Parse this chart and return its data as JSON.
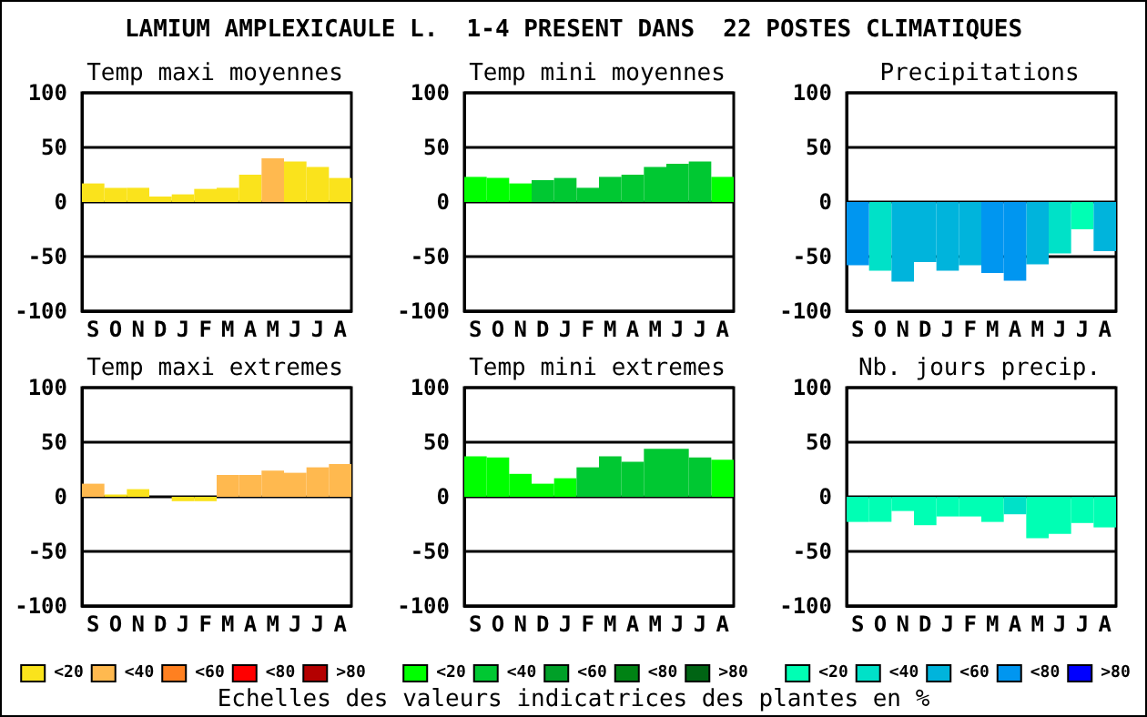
{
  "chart_data": [
    {
      "type": "bar",
      "title": "Temp maxi moyennes",
      "annotations": [
        "LAMIUM AMPLEXICAULE L.  1-4 PRESENT DANS  22 POSTES CLIMATIQUES"
      ],
      "categories": [
        "S",
        "O",
        "N",
        "D",
        "J",
        "F",
        "M",
        "A",
        "M",
        "J",
        "J",
        "A"
      ],
      "ylim": [
        -100,
        100
      ],
      "yticks": [
        -100,
        -50,
        0,
        50,
        100
      ],
      "grid": "y",
      "series": [
        {
          "color": "#fae31c",
          "values": [
            17,
            13,
            13,
            5,
            7,
            12,
            13,
            25,
            null,
            37,
            32,
            22
          ]
        },
        {
          "color": "#ffb94f",
          "values": [
            null,
            null,
            null,
            null,
            null,
            null,
            null,
            null,
            40,
            null,
            null,
            null
          ]
        }
      ]
    },
    {
      "type": "bar",
      "title": "Temp mini moyennes",
      "categories": [
        "S",
        "O",
        "N",
        "D",
        "J",
        "F",
        "M",
        "A",
        "M",
        "J",
        "J",
        "A"
      ],
      "ylim": [
        -100,
        100
      ],
      "yticks": [
        -100,
        -50,
        0,
        50,
        100
      ],
      "grid": "y",
      "series": [
        {
          "color": "#00ff00",
          "values": [
            23,
            22,
            17,
            null,
            null,
            null,
            null,
            null,
            null,
            null,
            null,
            23
          ]
        },
        {
          "color": "#00c832",
          "values": [
            null,
            null,
            null,
            20,
            22,
            13,
            23,
            25,
            32,
            35,
            37,
            null
          ]
        }
      ]
    },
    {
      "type": "bar",
      "title": "Precipitations",
      "categories": [
        "S",
        "O",
        "N",
        "D",
        "J",
        "F",
        "M",
        "A",
        "M",
        "J",
        "J",
        "A"
      ],
      "ylim": [
        -100,
        100
      ],
      "yticks": [
        -100,
        -50,
        0,
        50,
        100
      ],
      "grid": "y",
      "series": [
        {
          "color": "#00ffb4",
          "values": [
            null,
            null,
            null,
            null,
            null,
            null,
            null,
            null,
            null,
            null,
            -25,
            null
          ]
        },
        {
          "color": "#00e1c8",
          "values": [
            null,
            -63,
            null,
            null,
            null,
            null,
            null,
            null,
            null,
            -47,
            null,
            null
          ]
        },
        {
          "color": "#00b4dc",
          "values": [
            null,
            null,
            -73,
            -55,
            -63,
            -58,
            null,
            null,
            -57,
            null,
            null,
            -45
          ]
        },
        {
          "color": "#0096f0",
          "values": [
            -58,
            null,
            null,
            null,
            null,
            null,
            -65,
            -72,
            null,
            null,
            null,
            null
          ]
        }
      ]
    },
    {
      "type": "bar",
      "title": "Temp maxi extremes",
      "categories": [
        "S",
        "O",
        "N",
        "D",
        "J",
        "F",
        "M",
        "A",
        "M",
        "J",
        "J",
        "A"
      ],
      "ylim": [
        -100,
        100
      ],
      "yticks": [
        -100,
        -50,
        0,
        50,
        100
      ],
      "grid": "y",
      "legend": "bottom",
      "series": [
        {
          "name": "<20",
          "color": "#fae31c",
          "values": [
            null,
            2,
            7,
            null,
            -4,
            -4,
            null,
            null,
            null,
            null,
            null,
            null
          ]
        },
        {
          "name": "<40",
          "color": "#ffb94f",
          "values": [
            12,
            null,
            null,
            null,
            null,
            null,
            20,
            20,
            24,
            22,
            27,
            30
          ]
        },
        {
          "name": "<60",
          "color": "#ff8020",
          "values": [
            null,
            null,
            null,
            null,
            null,
            null,
            null,
            null,
            null,
            null,
            null,
            null
          ]
        },
        {
          "name": "<80",
          "color": "#ff0000",
          "values": [
            null,
            null,
            null,
            null,
            null,
            null,
            null,
            null,
            null,
            null,
            null,
            null
          ]
        },
        {
          "name": ">80",
          "color": "#b40000",
          "values": [
            null,
            null,
            null,
            null,
            null,
            null,
            null,
            null,
            null,
            null,
            null,
            null
          ]
        }
      ]
    },
    {
      "type": "bar",
      "title": "Temp mini extremes",
      "annotations": [
        "Echelles des valeurs indicatrices des plantes en %"
      ],
      "categories": [
        "S",
        "O",
        "N",
        "D",
        "J",
        "F",
        "M",
        "A",
        "M",
        "J",
        "J",
        "A"
      ],
      "ylim": [
        -100,
        100
      ],
      "yticks": [
        -100,
        -50,
        0,
        50,
        100
      ],
      "grid": "y",
      "legend": "bottom",
      "series": [
        {
          "name": "<20",
          "color": "#00ff00",
          "values": [
            37,
            36,
            21,
            12,
            17,
            null,
            null,
            null,
            null,
            null,
            null,
            34
          ]
        },
        {
          "name": "<40",
          "color": "#00c832",
          "values": [
            null,
            null,
            null,
            null,
            null,
            27,
            37,
            32,
            44,
            44,
            36,
            null
          ]
        },
        {
          "name": "<60",
          "color": "#00a028",
          "values": [
            null,
            null,
            null,
            null,
            null,
            null,
            null,
            null,
            null,
            null,
            null,
            null
          ]
        },
        {
          "name": "<80",
          "color": "#008214",
          "values": [
            null,
            null,
            null,
            null,
            null,
            null,
            null,
            null,
            null,
            null,
            null,
            null
          ]
        },
        {
          "name": ">80",
          "color": "#006414",
          "values": [
            null,
            null,
            null,
            null,
            null,
            null,
            null,
            null,
            null,
            null,
            null,
            null
          ]
        }
      ]
    },
    {
      "type": "bar",
      "title": "Nb. jours precip.",
      "categories": [
        "S",
        "O",
        "N",
        "D",
        "J",
        "F",
        "M",
        "A",
        "M",
        "J",
        "J",
        "A"
      ],
      "ylim": [
        -100,
        100
      ],
      "yticks": [
        -100,
        -50,
        0,
        50,
        100
      ],
      "grid": "y",
      "legend": "bottom",
      "series": [
        {
          "name": "<20",
          "color": "#00ffb4",
          "values": [
            -23,
            -23,
            -13,
            -26,
            -18,
            -18,
            -23,
            null,
            -38,
            -34,
            -24,
            -28
          ]
        },
        {
          "name": "<40",
          "color": "#00e1c8",
          "values": [
            null,
            null,
            null,
            null,
            null,
            null,
            null,
            -16,
            null,
            null,
            null,
            null
          ]
        },
        {
          "name": "<60",
          "color": "#00b4dc",
          "values": [
            null,
            null,
            null,
            null,
            null,
            null,
            null,
            null,
            null,
            null,
            null,
            null
          ]
        },
        {
          "name": "<80",
          "color": "#0096f0",
          "values": [
            null,
            null,
            null,
            null,
            null,
            null,
            null,
            null,
            null,
            null,
            null,
            null
          ]
        },
        {
          "name": ">80",
          "color": "#0000ff",
          "values": [
            null,
            null,
            null,
            null,
            null,
            null,
            null,
            null,
            null,
            null,
            null,
            null
          ]
        }
      ]
    }
  ]
}
